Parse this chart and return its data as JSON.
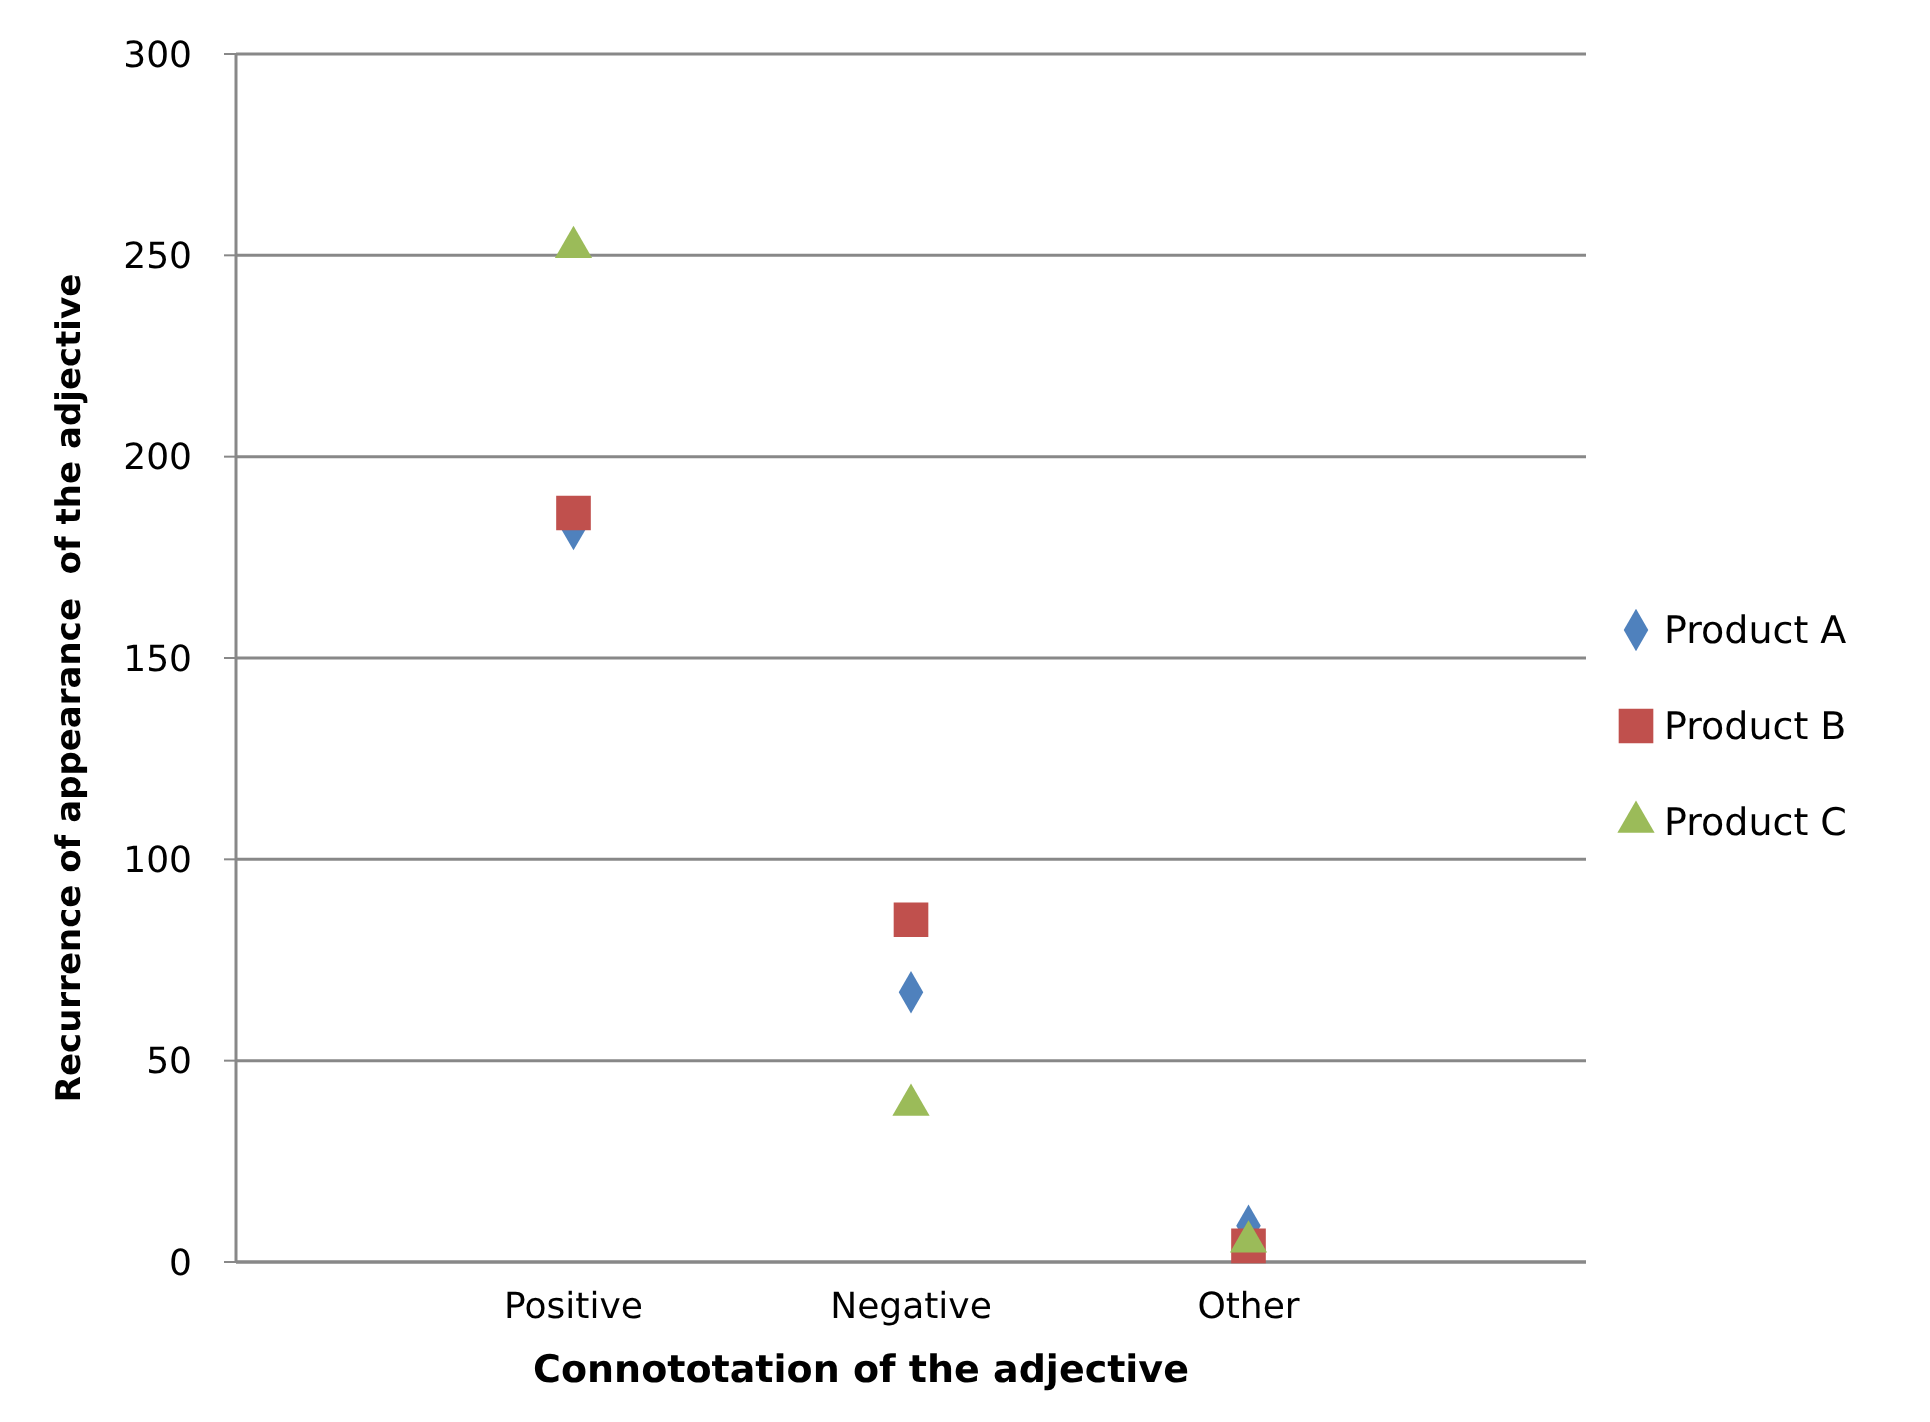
{
  "chart_data": {
    "type": "scatter",
    "xlabel": "Connototation of the adjective",
    "ylabel": "Recurrence of appearance  of the adjective",
    "categories": [
      "Positive",
      "Negative",
      "Other"
    ],
    "series": [
      {
        "name": "Product A",
        "color": "#4f81bd",
        "marker": "diamond",
        "values": [
          182,
          67,
          9
        ]
      },
      {
        "name": "Product B",
        "color": "#c0504d",
        "marker": "square",
        "values": [
          186,
          85,
          4
        ]
      },
      {
        "name": "Product C",
        "color": "#9bbb59",
        "marker": "triangle",
        "values": [
          252,
          39,
          5
        ]
      }
    ],
    "ylim": [
      0,
      300
    ],
    "yticks": [
      0,
      50,
      100,
      150,
      200,
      250,
      300
    ],
    "grid": "y",
    "legend": "right"
  }
}
